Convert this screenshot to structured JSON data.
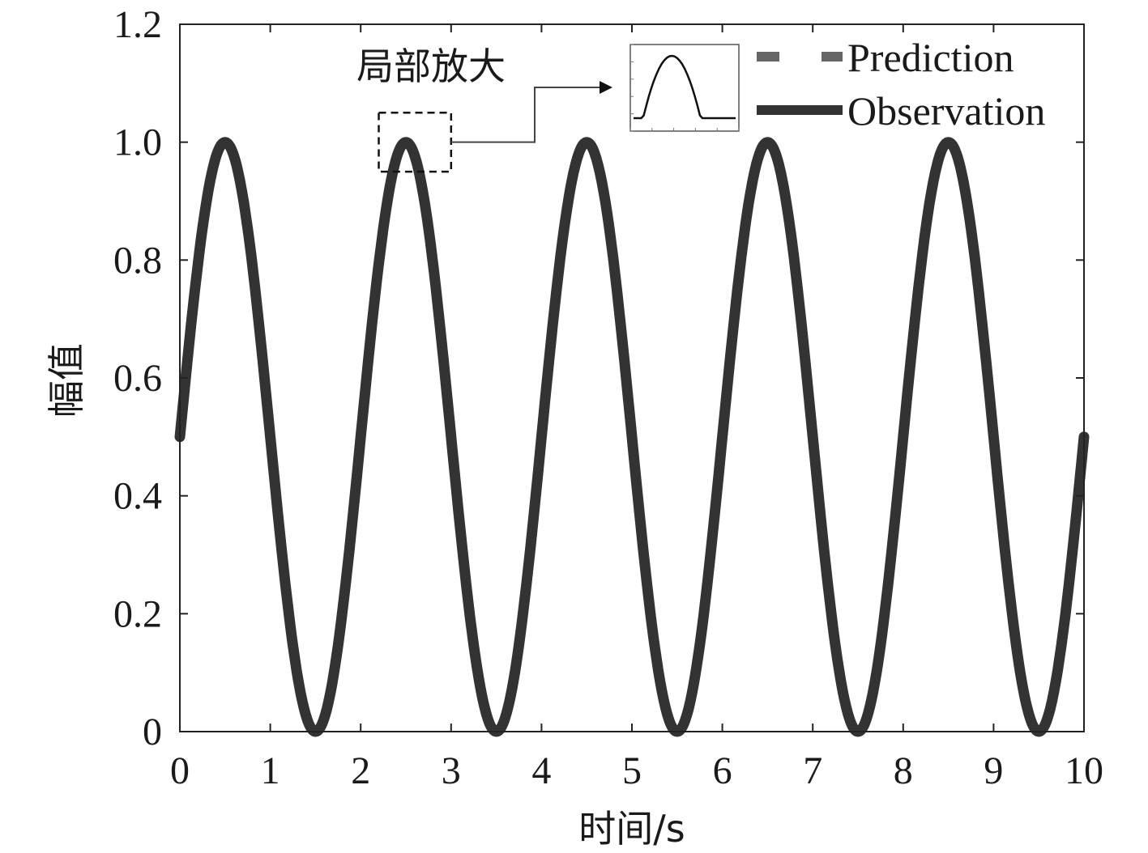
{
  "chart_data": {
    "type": "line",
    "xlabel": "时间/s",
    "ylabel": "幅值",
    "xlim": [
      0,
      10
    ],
    "ylim": [
      0,
      1.2
    ],
    "x_ticks": [
      "0",
      "1",
      "2",
      "3",
      "4",
      "5",
      "6",
      "7",
      "8",
      "9",
      "10"
    ],
    "y_ticks": [
      "0",
      "0.2",
      "0.4",
      "0.6",
      "0.8",
      "1.0",
      "1.2"
    ],
    "legend_position": "top-right",
    "grid": false,
    "series": [
      {
        "name": "Prediction",
        "style": "dashed",
        "color": "#555555",
        "x": [
          0,
          0.5,
          1.0,
          1.5,
          2.0,
          2.5,
          3.0,
          3.5,
          4.0,
          4.5,
          5.0,
          5.5,
          6.0,
          6.5,
          7.0,
          7.5,
          8.0,
          8.5,
          9.0,
          9.5,
          10.0
        ],
        "values": [
          0.5,
          1.0,
          0.5,
          0.0,
          0.5,
          1.0,
          0.5,
          0.0,
          0.5,
          1.0,
          0.5,
          0.0,
          0.5,
          1.0,
          0.5,
          0.0,
          0.5,
          1.0,
          0.5,
          0.0,
          0.5
        ]
      },
      {
        "name": "Observation",
        "style": "solid",
        "color": "#333333",
        "x": [
          0,
          0.5,
          1.0,
          1.5,
          2.0,
          2.5,
          3.0,
          3.5,
          4.0,
          4.5,
          5.0,
          5.5,
          6.0,
          6.5,
          7.0,
          7.5,
          8.0,
          8.5,
          9.0,
          9.5,
          10.0
        ],
        "values": [
          0.5,
          1.0,
          0.5,
          0.0,
          0.5,
          1.0,
          0.5,
          0.0,
          0.5,
          1.0,
          0.5,
          0.0,
          0.5,
          1.0,
          0.5,
          0.0,
          0.5,
          1.0,
          0.5,
          0.0,
          0.5
        ]
      }
    ],
    "annotation": {
      "label": "局部放大",
      "zoom_x": [
        2.2,
        3.0
      ],
      "zoom_y": [
        0.95,
        1.05
      ]
    }
  }
}
